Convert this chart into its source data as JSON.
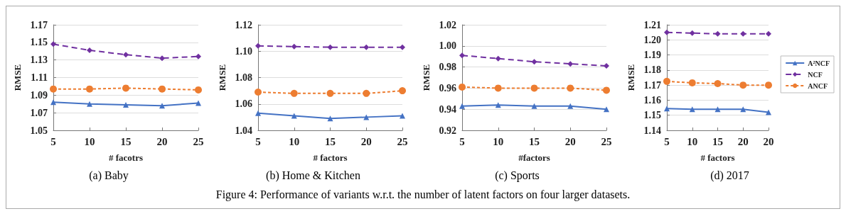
{
  "chart_data": [
    {
      "type": "line",
      "title": "(a) Baby",
      "xlabel": "# facotrs",
      "ylabel": "RMSE",
      "categories": [
        "5",
        "10",
        "15",
        "20",
        "25"
      ],
      "ylim": [
        1.05,
        1.17
      ],
      "yticks": [
        1.05,
        1.07,
        1.09,
        1.11,
        1.13,
        1.15,
        1.17
      ],
      "grid": "y",
      "legend": false,
      "annotations": [
        "Figure 4: Performance of variants w.r.t. the number of latent factors on four larger datasets."
      ],
      "series": [
        {
          "color": "#4472c4",
          "marker": "triangle",
          "line_style": "solid",
          "values": [
            1.082,
            1.08,
            1.079,
            1.078,
            1.081
          ]
        },
        {
          "color": "#7030a0",
          "marker": "diamond",
          "line_style": "dashed",
          "values": [
            1.148,
            1.141,
            1.136,
            1.132,
            1.134
          ]
        },
        {
          "color": "#ed7d31",
          "marker": "circle",
          "line_style": "dashed",
          "values": [
            1.097,
            1.097,
            1.098,
            1.097,
            1.096
          ]
        }
      ]
    },
    {
      "type": "line",
      "title": "(b) Home & Kitchen",
      "xlabel": "# factors",
      "ylabel": "RMSE",
      "categories": [
        "5",
        "10",
        "15",
        "20",
        "25"
      ],
      "ylim": [
        1.04,
        1.12
      ],
      "yticks": [
        1.04,
        1.06,
        1.08,
        {
          "value": 1.1,
          "label": "1.10"
        },
        1.12
      ],
      "grid": "y",
      "legend": false,
      "series": [
        {
          "color": "#4472c4",
          "marker": "triangle",
          "line_style": "solid",
          "values": [
            1.053,
            1.051,
            1.049,
            1.05,
            1.051
          ]
        },
        {
          "color": "#7030a0",
          "marker": "diamond",
          "line_style": "dashed",
          "values": [
            1.104,
            1.1035,
            1.103,
            1.103,
            1.103
          ]
        },
        {
          "color": "#ed7d31",
          "marker": "circle",
          "line_style": "dashed",
          "values": [
            1.069,
            1.068,
            1.068,
            1.068,
            1.07
          ]
        }
      ]
    },
    {
      "type": "line",
      "title": "(c) Sports",
      "xlabel": "#factors",
      "ylabel": "RMSE",
      "categories": [
        "5",
        "10",
        "15",
        "20",
        "25"
      ],
      "ylim": [
        0.92,
        1.02
      ],
      "yticks": [
        0.92,
        0.94,
        0.96,
        0.98,
        {
          "value": 1.0,
          "label": "1.00"
        },
        1.02
      ],
      "grid": "y",
      "legend": false,
      "series": [
        {
          "color": "#4472c4",
          "marker": "triangle",
          "line_style": "solid",
          "values": [
            0.943,
            0.944,
            0.943,
            0.943,
            0.94
          ]
        },
        {
          "color": "#7030a0",
          "marker": "diamond",
          "line_style": "dashed",
          "values": [
            0.991,
            0.988,
            0.985,
            0.983,
            0.981
          ]
        },
        {
          "color": "#ed7d31",
          "marker": "circle",
          "line_style": "dashed",
          "values": [
            0.961,
            0.96,
            0.96,
            0.96,
            0.958
          ]
        }
      ]
    },
    {
      "type": "line",
      "title": "(d) 2017",
      "xlabel": "# factors",
      "ylabel": "RMSE",
      "categories": [
        "5",
        "10",
        "15",
        "20",
        "20"
      ],
      "ylim": [
        1.14,
        1.21
      ],
      "yticks": [
        1.14,
        1.15,
        1.16,
        1.17,
        1.18,
        1.19,
        {
          "value": 1.2,
          "label": "1.20"
        },
        1.21
      ],
      "grid": "y",
      "legend": "right",
      "series": [
        {
          "name": "A²NCF",
          "color": "#4472c4",
          "marker": "triangle",
          "line_style": "solid",
          "values": [
            1.1545,
            1.154,
            1.154,
            1.154,
            1.152
          ]
        },
        {
          "name": "NCF",
          "color": "#7030a0",
          "marker": "diamond",
          "line_style": "dashed",
          "values": [
            1.205,
            1.2045,
            1.204,
            1.204,
            1.204
          ]
        },
        {
          "name": "ANCF",
          "color": "#ed7d31",
          "marker": "circle",
          "line_style": "dashed",
          "values": [
            1.1725,
            1.1715,
            1.171,
            1.17,
            1.17
          ]
        }
      ]
    }
  ]
}
